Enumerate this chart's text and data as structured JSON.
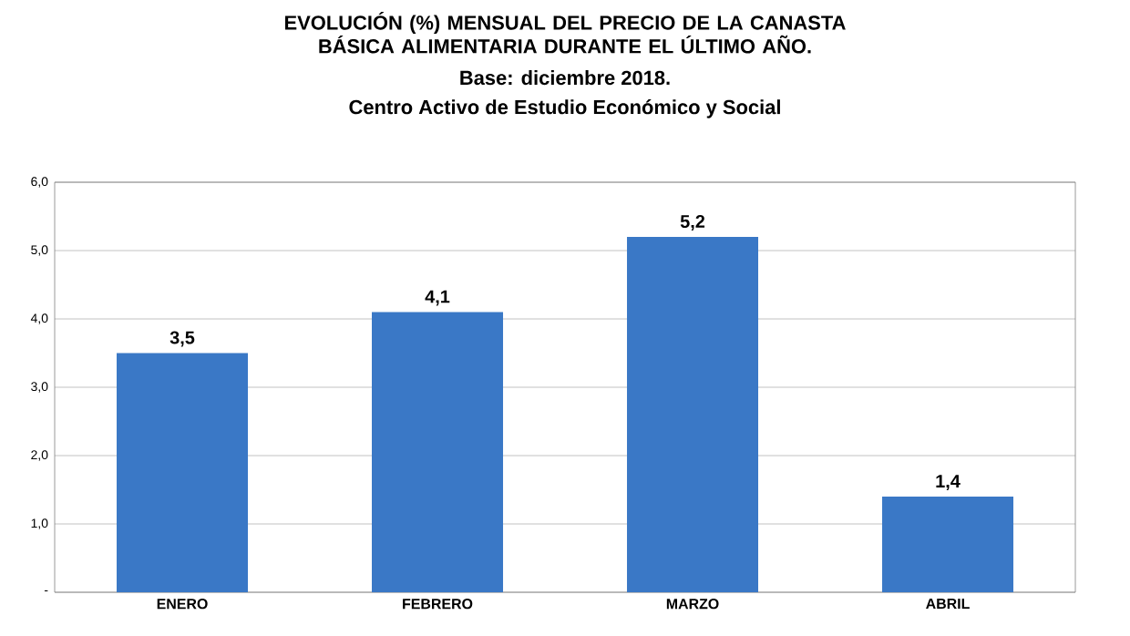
{
  "chart_data": {
    "type": "bar",
    "title": "EVOLUCIÓN (%) MENSUAL DEL PRECIO DE LA CANASTA BÁSICA ALIMENTARIA DURANTE EL ÚLTIMO AÑO.",
    "subtitle": "Base: diciembre 2018.",
    "annotations": [
      "Centro Activo de Estudio Económico y Social"
    ],
    "categories": [
      "ENERO",
      "FEBRERO",
      "MARZO",
      "ABRIL"
    ],
    "values": [
      3.5,
      4.1,
      5.2,
      1.4
    ],
    "value_labels": [
      "3,5",
      "4,1",
      "5,2",
      "1,4"
    ],
    "color": "#3a78c6",
    "ylim": [
      0,
      6
    ],
    "yticks": [
      {
        "value": 0,
        "label": "-"
      },
      {
        "value": 1,
        "label": "1,0"
      },
      {
        "value": 2,
        "label": "2,0"
      },
      {
        "value": 3,
        "label": "3,0"
      },
      {
        "value": 4,
        "label": "4,0"
      },
      {
        "value": 5,
        "label": "5,0"
      },
      {
        "value": 6,
        "label": "6,0"
      }
    ],
    "grid": "y"
  }
}
